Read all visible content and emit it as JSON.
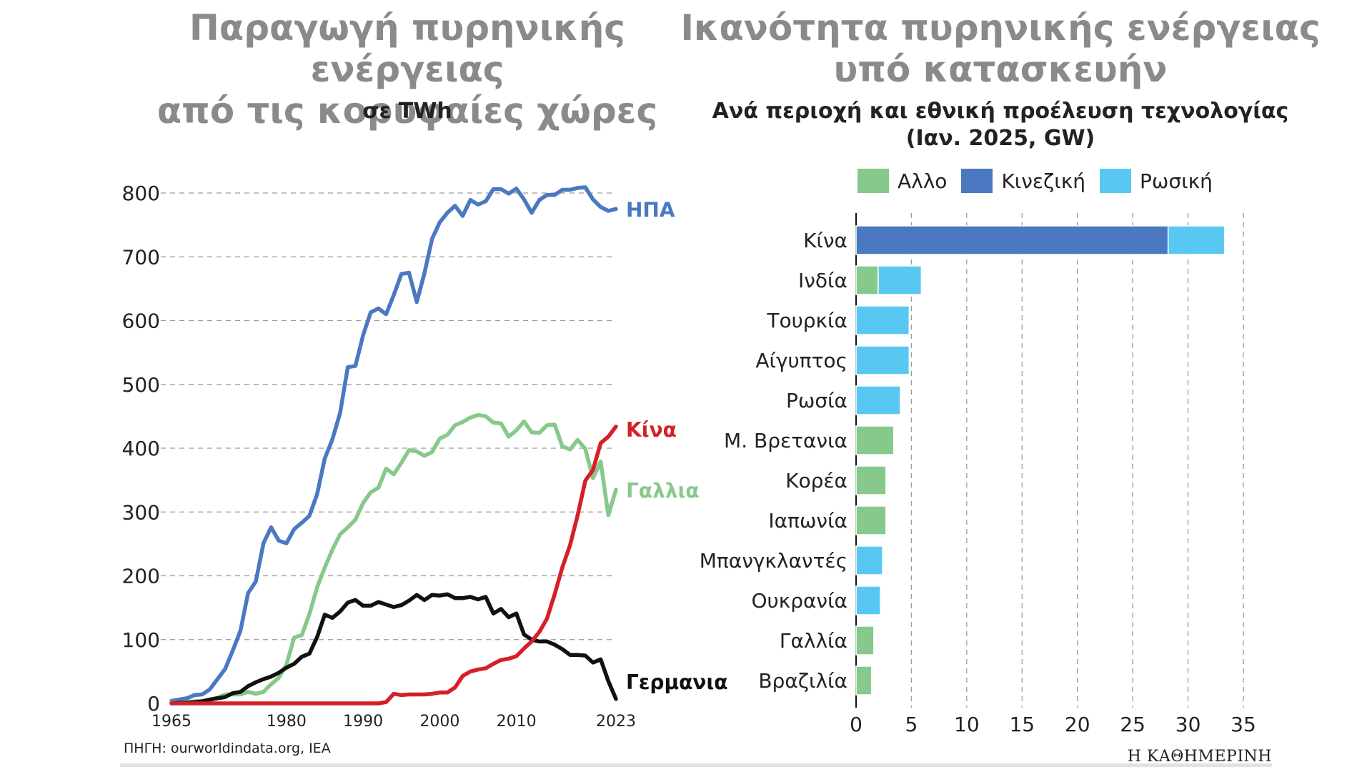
{
  "left": {
    "title_line1": "Παραγωγή πυρηνικής ενέργειας",
    "title_line2": "από τις κορυφαίες χώρες",
    "unit": "σε TWh"
  },
  "right": {
    "title_line1": "Ικανότητα πυρηνικής ενέργειας",
    "title_line2": "υπό κατασκευήν",
    "subtitle_line1": "Ανά περιοχή και εθνική προέλευση τεχνολογίας",
    "subtitle_line2": "(Ιαν. 2025, GW)",
    "legend": [
      {
        "label": "Αλλο",
        "color": "#86c98a"
      },
      {
        "label": "Κινεζική",
        "color": "#4a79c2"
      },
      {
        "label": "Ρωσική",
        "color": "#58c8f2"
      }
    ]
  },
  "source": "ΠΗΓΗ: ourworldindata.org, IEA",
  "brand": "Η ΚΑΘΗΜΕΡΙΝΗ",
  "chart_data": [
    {
      "type": "line",
      "title": "Παραγωγή πυρηνικής ενέργειας από τις κορυφαίες χώρες",
      "subtitle": "σε TWh",
      "xlim": [
        1965,
        2023
      ],
      "ylim": [
        0,
        800
      ],
      "yticks": [
        0,
        100,
        200,
        300,
        400,
        500,
        600,
        700,
        800
      ],
      "xtick_labels": [
        "1965",
        "1980",
        "1990",
        "2000",
        "2010",
        "2023"
      ],
      "xticks": [
        1965,
        1980,
        1990,
        2000,
        2010,
        2023
      ],
      "grid": true,
      "series": [
        {
          "name": "ΗΠΑ",
          "color": "#4a79c2",
          "x": [
            1965,
            1966,
            1967,
            1968,
            1969,
            1970,
            1971,
            1972,
            1973,
            1974,
            1975,
            1976,
            1977,
            1978,
            1979,
            1980,
            1981,
            1982,
            1983,
            1984,
            1985,
            1986,
            1987,
            1988,
            1989,
            1990,
            1991,
            1992,
            1993,
            1994,
            1995,
            1996,
            1997,
            1998,
            1999,
            2000,
            2001,
            2002,
            2003,
            2004,
            2005,
            2006,
            2007,
            2008,
            2009,
            2010,
            2011,
            2012,
            2013,
            2014,
            2015,
            2016,
            2017,
            2018,
            2019,
            2020,
            2021,
            2022,
            2023
          ],
          "values": [
            4,
            6,
            8,
            13,
            14,
            22,
            38,
            54,
            83,
            114,
            173,
            191,
            251,
            276,
            255,
            251,
            273,
            283,
            294,
            328,
            384,
            414,
            455,
            527,
            529,
            577,
            613,
            619,
            610,
            640,
            673,
            675,
            629,
            674,
            728,
            754,
            769,
            780,
            764,
            789,
            782,
            787,
            806,
            806,
            799,
            807,
            790,
            769,
            789,
            797,
            797,
            805,
            805,
            808,
            809,
            790,
            778,
            772,
            775
          ]
        },
        {
          "name": "Γαλλια",
          "color": "#86c98a",
          "x": [
            1965,
            1966,
            1967,
            1968,
            1969,
            1970,
            1971,
            1972,
            1973,
            1974,
            1975,
            1976,
            1977,
            1978,
            1979,
            1980,
            1981,
            1982,
            1983,
            1984,
            1985,
            1986,
            1987,
            1988,
            1989,
            1990,
            1991,
            1992,
            1993,
            1994,
            1995,
            1996,
            1997,
            1998,
            1999,
            2000,
            2001,
            2002,
            2003,
            2004,
            2005,
            2006,
            2007,
            2008,
            2009,
            2010,
            2011,
            2012,
            2013,
            2014,
            2015,
            2016,
            2017,
            2018,
            2019,
            2020,
            2021,
            2022,
            2023
          ],
          "values": [
            1,
            1,
            2,
            3,
            4,
            5,
            9,
            14,
            14,
            14,
            18,
            15,
            18,
            30,
            40,
            61,
            103,
            107,
            140,
            182,
            213,
            241,
            265,
            276,
            288,
            314,
            331,
            338,
            368,
            359,
            377,
            397,
            395,
            388,
            394,
            415,
            421,
            436,
            441,
            448,
            452,
            450,
            440,
            439,
            418,
            428,
            442,
            425,
            424,
            436,
            437,
            403,
            398,
            413,
            399,
            353,
            379,
            295,
            335
          ]
        },
        {
          "name": "Γερμανια",
          "color": "#111111",
          "x": [
            1965,
            1966,
            1967,
            1968,
            1969,
            1970,
            1971,
            1972,
            1973,
            1974,
            1975,
            1976,
            1977,
            1978,
            1979,
            1980,
            1981,
            1982,
            1983,
            1984,
            1985,
            1986,
            1987,
            1988,
            1989,
            1990,
            1991,
            1992,
            1993,
            1994,
            1995,
            1996,
            1997,
            1998,
            1999,
            2000,
            2001,
            2002,
            2003,
            2004,
            2005,
            2006,
            2007,
            2008,
            2009,
            2010,
            2011,
            2012,
            2013,
            2014,
            2015,
            2016,
            2017,
            2018,
            2019,
            2020,
            2021,
            2022,
            2023
          ],
          "values": [
            0,
            1,
            1,
            2,
            3,
            6,
            8,
            10,
            16,
            18,
            27,
            33,
            38,
            42,
            48,
            56,
            62,
            73,
            78,
            104,
            139,
            134,
            144,
            158,
            162,
            153,
            153,
            159,
            155,
            151,
            154,
            161,
            170,
            162,
            170,
            169,
            171,
            165,
            165,
            167,
            163,
            167,
            141,
            148,
            135,
            141,
            108,
            100,
            97,
            97,
            92,
            85,
            76,
            76,
            75,
            64,
            69,
            35,
            7
          ]
        },
        {
          "name": "Κίνα",
          "color": "#d62028",
          "x": [
            1965,
            1990,
            1991,
            1992,
            1993,
            1994,
            1995,
            1996,
            1997,
            1998,
            1999,
            2000,
            2001,
            2002,
            2003,
            2004,
            2005,
            2006,
            2007,
            2008,
            2009,
            2010,
            2011,
            2012,
            2013,
            2014,
            2015,
            2016,
            2017,
            2018,
            2019,
            2020,
            2021,
            2022,
            2023
          ],
          "values": [
            0,
            0,
            0,
            0,
            2,
            15,
            13,
            14,
            14,
            14,
            15,
            17,
            17,
            25,
            43,
            50,
            53,
            55,
            62,
            68,
            70,
            74,
            86,
            97,
            112,
            133,
            171,
            213,
            248,
            295,
            349,
            366,
            408,
            418,
            434
          ]
        }
      ]
    },
    {
      "type": "bar",
      "orientation": "horizontal",
      "stacked": true,
      "title": "Ικανότητα πυρηνικής ενέργειας υπό κατασκευήν",
      "subtitle": "Ανά περιοχή και εθνική προέλευση τεχνολογίας (Ιαν. 2025, GW)",
      "xlim": [
        0,
        35
      ],
      "xticks": [
        0,
        5,
        10,
        15,
        20,
        25,
        30,
        35
      ],
      "grid": true,
      "categories": [
        "Κίνα",
        "Ινδία",
        "Τουρκία",
        "Αίγυπτος",
        "Ρωσία",
        "Μ. Βρετανια",
        "Κορέα",
        "Ιαπωνία",
        "Μπανγκλαντές",
        "Ουκρανία",
        "Γαλλία",
        "Βραζιλία"
      ],
      "series": [
        {
          "name": "Αλλο",
          "color": "#86c98a",
          "values": [
            0,
            2.0,
            0,
            0,
            0,
            3.4,
            2.7,
            2.7,
            0,
            0,
            1.6,
            1.4
          ]
        },
        {
          "name": "Κινεζική",
          "color": "#4a79c2",
          "values": [
            28.2,
            0,
            0,
            0,
            0,
            0,
            0,
            0,
            0,
            0,
            0,
            0
          ]
        },
        {
          "name": "Ρωσική",
          "color": "#58c8f2",
          "values": [
            5.1,
            3.9,
            4.8,
            4.8,
            4.0,
            0,
            0,
            0,
            2.4,
            2.2,
            0,
            0
          ]
        }
      ]
    }
  ]
}
